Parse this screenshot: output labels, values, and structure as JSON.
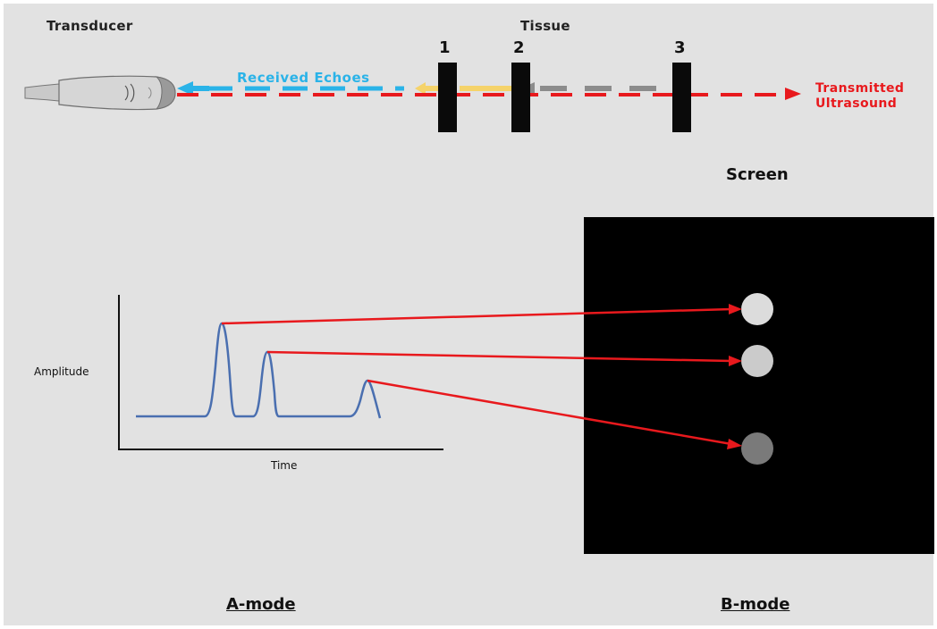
{
  "labels": {
    "transducer": "Transducer",
    "tissue": "Tissue",
    "tissue_numbers": [
      "1",
      "2",
      "3"
    ],
    "received_echoes": "Received Echoes",
    "transmitted_line1": "Transmitted",
    "transmitted_line2": "Ultrasound",
    "screen": "Screen",
    "amplitude": "Amplitude",
    "time": "Time",
    "a_mode": "A-mode",
    "b_mode": "B-mode"
  },
  "colors": {
    "transmitted": "#e8191d",
    "received": "#2ab3e8",
    "echo_1": "#f5d36a",
    "echo_2": "#8c8c8c",
    "trace": "#4a6fb0",
    "screen": "#000000",
    "dot_bright": "#dcdcdc",
    "dot_medium": "#cbcbcb",
    "dot_dim": "#7a7a7a"
  },
  "echoes": [
    {
      "tissue": "1",
      "relative_amplitude": "high",
      "b_mode_brightness": "bright"
    },
    {
      "tissue": "2",
      "relative_amplitude": "medium",
      "b_mode_brightness": "medium"
    },
    {
      "tissue": "3",
      "relative_amplitude": "low",
      "b_mode_brightness": "dim"
    }
  ],
  "icons": [
    "transducer-probe-icon",
    "arrow-left-icon",
    "arrow-right-icon"
  ]
}
